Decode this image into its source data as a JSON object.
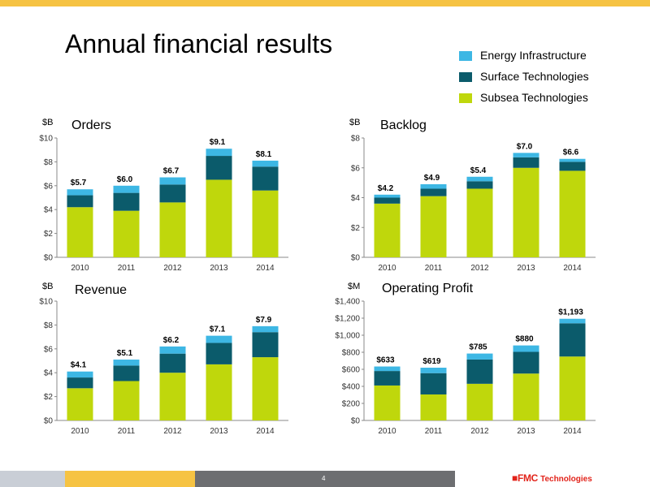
{
  "slide": {
    "title": "Annual financial results",
    "page_number": "4",
    "brand_logo": "FMC Technologies",
    "colors": {
      "energy": "#3db7e4",
      "surface": "#0b5b6b",
      "subsea": "#bfd70c",
      "top_bar": "#f6c343",
      "footer_gray_light": "#c9ced6",
      "footer_yellow": "#f6c343",
      "footer_gray_dark": "#6d6e71",
      "brand_red": "#e2231a"
    }
  },
  "legend": [
    {
      "name": "Energy Infrastructure",
      "color_key": "energy"
    },
    {
      "name": "Surface Technologies",
      "color_key": "surface"
    },
    {
      "name": "Subsea Technologies",
      "color_key": "subsea"
    }
  ],
  "chart_data": [
    {
      "type": "bar",
      "stacked": true,
      "title": "Orders",
      "unit": "$B",
      "categories": [
        "2010",
        "2011",
        "2012",
        "2013",
        "2014"
      ],
      "ylim": [
        0,
        10
      ],
      "yticks": [
        0,
        2,
        4,
        6,
        8,
        10
      ],
      "ytick_labels": [
        "$0",
        "$2",
        "$4",
        "$6",
        "$8",
        "$10"
      ],
      "series": [
        {
          "name": "Subsea Technologies",
          "values": [
            4.2,
            3.9,
            4.6,
            6.5,
            5.6
          ]
        },
        {
          "name": "Surface Technologies",
          "values": [
            1.0,
            1.5,
            1.5,
            2.0,
            2.0
          ]
        },
        {
          "name": "Energy Infrastructure",
          "values": [
            0.5,
            0.6,
            0.6,
            0.6,
            0.5
          ]
        }
      ],
      "totals": [
        "$5.7",
        "$6.0",
        "$6.7",
        "$9.1",
        "$8.1"
      ]
    },
    {
      "type": "bar",
      "stacked": true,
      "title": "Backlog",
      "unit": "$B",
      "categories": [
        "2010",
        "2011",
        "2012",
        "2013",
        "2014"
      ],
      "ylim": [
        0,
        8
      ],
      "yticks": [
        0,
        2,
        4,
        6,
        8
      ],
      "ytick_labels": [
        "$0",
        "$2",
        "$4",
        "$6",
        "$8"
      ],
      "series": [
        {
          "name": "Subsea Technologies",
          "values": [
            3.6,
            4.1,
            4.6,
            6.0,
            5.8
          ]
        },
        {
          "name": "Surface Technologies",
          "values": [
            0.4,
            0.5,
            0.5,
            0.7,
            0.6
          ]
        },
        {
          "name": "Energy Infrastructure",
          "values": [
            0.2,
            0.3,
            0.3,
            0.3,
            0.2
          ]
        }
      ],
      "totals": [
        "$4.2",
        "$4.9",
        "$5.4",
        "$7.0",
        "$6.6"
      ]
    },
    {
      "type": "bar",
      "stacked": true,
      "title": "Revenue",
      "unit": "$B",
      "categories": [
        "2010",
        "2011",
        "2012",
        "2013",
        "2014"
      ],
      "ylim": [
        0,
        10
      ],
      "yticks": [
        0,
        2,
        4,
        6,
        8,
        10
      ],
      "ytick_labels": [
        "$0",
        "$2",
        "$4",
        "$6",
        "$8",
        "$10"
      ],
      "series": [
        {
          "name": "Subsea Technologies",
          "values": [
            2.7,
            3.3,
            4.0,
            4.7,
            5.3
          ]
        },
        {
          "name": "Surface Technologies",
          "values": [
            0.9,
            1.3,
            1.6,
            1.8,
            2.1
          ]
        },
        {
          "name": "Energy Infrastructure",
          "values": [
            0.5,
            0.5,
            0.6,
            0.6,
            0.5
          ]
        }
      ],
      "totals": [
        "$4.1",
        "$5.1",
        "$6.2",
        "$7.1",
        "$7.9"
      ]
    },
    {
      "type": "bar",
      "stacked": true,
      "title": "Operating Profit",
      "unit": "$M",
      "categories": [
        "2010",
        "2011",
        "2012",
        "2013",
        "2014"
      ],
      "ylim": [
        0,
        1400
      ],
      "yticks": [
        0,
        200,
        400,
        600,
        800,
        1000,
        1200,
        1400
      ],
      "ytick_labels": [
        "$0",
        "$200",
        "$400",
        "$600",
        "$800",
        "$1,000",
        "$1,200",
        "$1,400"
      ],
      "series": [
        {
          "name": "Subsea Technologies",
          "values": [
            410,
            305,
            430,
            550,
            750
          ]
        },
        {
          "name": "Surface Technologies",
          "values": [
            170,
            250,
            285,
            255,
            390
          ]
        },
        {
          "name": "Energy Infrastructure",
          "values": [
            53,
            64,
            70,
            75,
            53
          ]
        }
      ],
      "totals": [
        "$633",
        "$619",
        "$785",
        "$880",
        "$1,193"
      ]
    }
  ]
}
